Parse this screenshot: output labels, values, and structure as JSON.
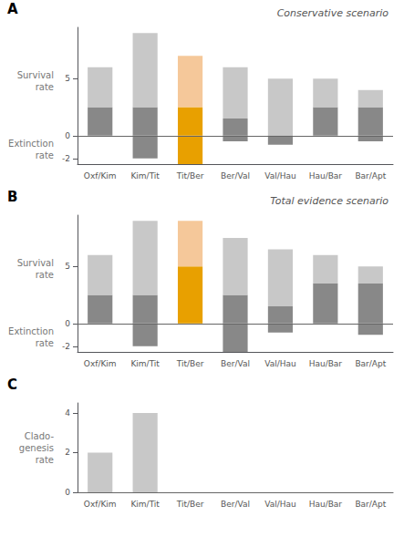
{
  "chart_data": [
    {
      "type": "bar",
      "title": "Conservative scenario",
      "annotations": [
        "A"
      ],
      "ylabel": [
        "Survival\nrate",
        "Extinction\nrate"
      ],
      "categories": [
        "Oxf/Kim",
        "Kim/Tit",
        "Tit/Ber",
        "Ber/Val",
        "Val/Hau",
        "Hau/Bar",
        "Bar/Apt"
      ],
      "stacked": true,
      "series": [
        {
          "colors": [
            "#888888",
            "#888888",
            "#e8a000",
            "#888888",
            "#888888",
            "#888888",
            "#888888"
          ],
          "values": [
            2.5,
            2.5,
            2.5,
            1.5,
            0.0,
            2.5,
            2.5
          ]
        },
        {
          "colors": [
            "#c8c8c8",
            "#c8c8c8",
            "#f5c89a",
            "#c8c8c8",
            "#c8c8c8",
            "#c8c8c8",
            "#c8c8c8"
          ],
          "values": [
            3.5,
            6.5,
            4.5,
            4.5,
            5.0,
            2.5,
            1.5
          ]
        },
        {
          "colors": [
            "#888888",
            "#888888",
            "#e8a000",
            "#888888",
            "#888888",
            "#888888",
            "#888888"
          ],
          "values": [
            0.0,
            -2.0,
            -2.5,
            -0.5,
            -0.8,
            0.0,
            -0.5
          ]
        }
      ],
      "ylim": [
        -2.5,
        9.5
      ],
      "yticks": [
        -2,
        0,
        5
      ],
      "grid": false
    },
    {
      "type": "bar",
      "title": "Total evidence scenario",
      "annotations": [
        "B"
      ],
      "ylabel": [
        "Survival\nrate",
        "Extinction\nrate"
      ],
      "categories": [
        "Oxf/Kim",
        "Kim/Tit",
        "Tit/Ber",
        "Ber/Val",
        "Val/Hau",
        "Hau/Bar",
        "Bar/Apt"
      ],
      "stacked": true,
      "series": [
        {
          "colors": [
            "#888888",
            "#888888",
            "#e8a000",
            "#888888",
            "#888888",
            "#888888",
            "#888888"
          ],
          "values": [
            2.5,
            2.5,
            5.0,
            2.5,
            1.5,
            3.5,
            3.5
          ]
        },
        {
          "colors": [
            "#c8c8c8",
            "#c8c8c8",
            "#f5c89a",
            "#c8c8c8",
            "#c8c8c8",
            "#c8c8c8",
            "#c8c8c8"
          ],
          "values": [
            3.5,
            6.5,
            4.0,
            5.0,
            5.0,
            2.5,
            1.5
          ]
        },
        {
          "colors": [
            "#888888",
            "#888888",
            "#e8a000",
            "#888888",
            "#888888",
            "#888888",
            "#888888"
          ],
          "values": [
            0.0,
            -2.0,
            0.0,
            -2.5,
            -0.8,
            0.0,
            -1.0
          ]
        }
      ],
      "ylim": [
        -2.5,
        9.5
      ],
      "yticks": [
        -2,
        0,
        5
      ],
      "grid": false
    },
    {
      "type": "bar",
      "annotations": [
        "C"
      ],
      "ylabel": [
        "Clado-\ngenesis\nrate"
      ],
      "categories": [
        "Oxf/Kim",
        "Kim/Tit",
        "Tit/Ber",
        "Ber/Val",
        "Val/Hau",
        "Hau/Bar",
        "Bar/Apt"
      ],
      "values": [
        2.0,
        4.0,
        0.0,
        0.0,
        0.0,
        0.0,
        0.0
      ],
      "color": "#c8c8c8",
      "ylim": [
        0,
        4.5
      ],
      "yticks": [
        0,
        2,
        4
      ],
      "grid": false
    }
  ]
}
